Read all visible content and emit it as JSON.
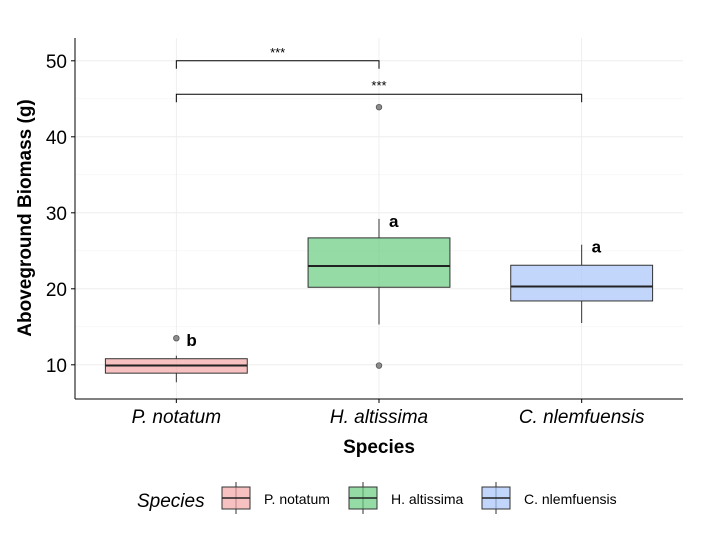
{
  "chart_data": {
    "type": "box",
    "xlabel": "Species",
    "ylabel": "Aboveground Biomass (g)",
    "ylim": [
      5.5,
      53
    ],
    "yticks": [
      10,
      20,
      30,
      40,
      50
    ],
    "grid": true,
    "categories": [
      "P. notatum",
      "H. altissima",
      "C. nlemfuensis"
    ],
    "colors": [
      "#f4a6a6",
      "#66cc80",
      "#a6c4f8"
    ],
    "boxes": [
      {
        "name": "P. notatum",
        "whisker_low": 7.7,
        "q1": 8.9,
        "median": 9.9,
        "q3": 10.8,
        "whisker_high": 11.2,
        "outliers": [
          13.5
        ],
        "letter": "b"
      },
      {
        "name": "H. altissima",
        "whisker_low": 15.3,
        "q1": 20.2,
        "median": 23.0,
        "q3": 26.7,
        "whisker_high": 29.2,
        "outliers": [
          43.9,
          9.9
        ],
        "letter": "a"
      },
      {
        "name": "C. nlemfuensis",
        "whisker_low": 15.5,
        "q1": 18.4,
        "median": 20.3,
        "q3": 23.1,
        "whisker_high": 25.8,
        "outliers": [],
        "letter": "a"
      }
    ],
    "significance": [
      {
        "from": 0,
        "to": 1,
        "y": 50.0,
        "label": "***"
      },
      {
        "from": 0,
        "to": 2,
        "y": 45.6,
        "label": "***"
      }
    ],
    "legend": {
      "title": "Species",
      "position": "bottom",
      "entries": [
        "P. notatum",
        "H. altissima",
        "C. nlemfuensis"
      ]
    }
  }
}
